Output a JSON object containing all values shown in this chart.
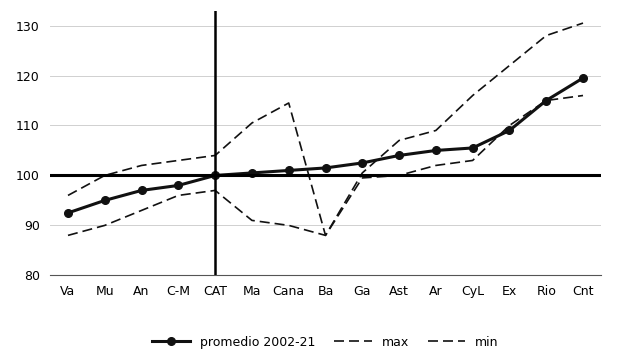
{
  "categories": [
    "Va",
    "Mu",
    "An",
    "C-M",
    "CAT",
    "Ma",
    "Cana",
    "Ba",
    "Ga",
    "Ast",
    "Ar",
    "CyL",
    "Ex",
    "Rio",
    "Cnt"
  ],
  "promedio": [
    92.5,
    95.0,
    97.0,
    98.0,
    100.0,
    100.5,
    101.0,
    101.5,
    102.5,
    104.0,
    105.0,
    105.5,
    109.0,
    115.0,
    119.5
  ],
  "max": [
    96.0,
    100.0,
    102.0,
    103.0,
    104.0,
    110.5,
    114.5,
    88.0,
    100.5,
    107.0,
    109.0,
    116.0,
    122.0,
    128.0,
    130.5
  ],
  "min": [
    88.0,
    90.0,
    93.0,
    96.0,
    97.0,
    91.0,
    90.0,
    88.0,
    99.5,
    100.0,
    102.0,
    103.0,
    110.0,
    115.0,
    116.0
  ],
  "vline_pos": 4,
  "hline_val": 100,
  "ylim": [
    80,
    133
  ],
  "yticks": [
    80,
    90,
    100,
    110,
    120,
    130
  ],
  "line_color": "#111111",
  "dashed_color": "#111111",
  "background_color": "#ffffff",
  "legend_promedio": "promedio 2002-21",
  "legend_max": "max",
  "legend_min": "min",
  "figsize": [
    6.2,
    3.53
  ],
  "dpi": 100
}
